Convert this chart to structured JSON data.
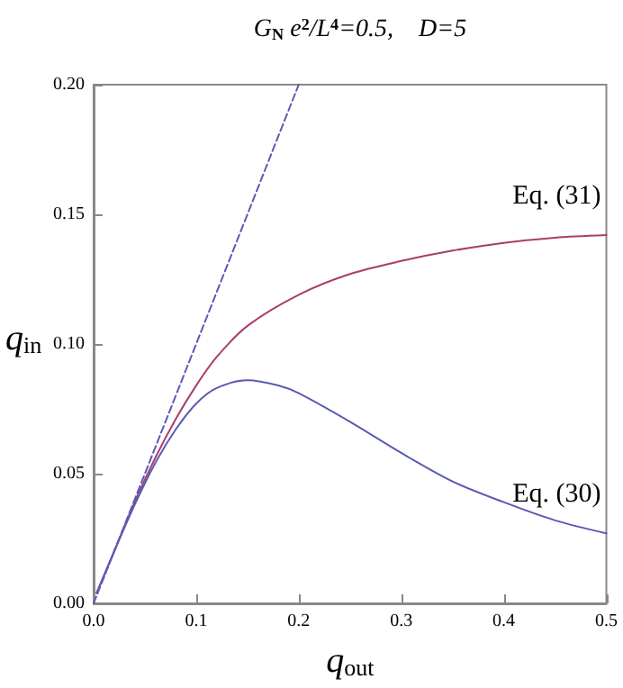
{
  "chart_data": {
    "type": "line",
    "title": "G$_{N}$ e$^{2}$/L$^{4}$=0.5,    D=5",
    "xlabel": "q$_{out}$",
    "ylabel": "q$_{in}$",
    "xlim": [
      0,
      0.5
    ],
    "ylim": [
      0,
      0.2
    ],
    "xticks": [
      {
        "value": 0,
        "label": "0.0"
      },
      {
        "value": 0.1,
        "label": "0.1"
      },
      {
        "value": 0.2,
        "label": "0.2"
      },
      {
        "value": 0.3,
        "label": "0.3"
      },
      {
        "value": 0.4,
        "label": "0.4"
      },
      {
        "value": 0.5,
        "label": "0.5"
      }
    ],
    "yticks": [
      {
        "value": 0,
        "label": "0.00"
      },
      {
        "value": 0.05,
        "label": "0.05"
      },
      {
        "value": 0.1,
        "label": "0.10"
      },
      {
        "value": 0.15,
        "label": "0.15"
      },
      {
        "value": 0.2,
        "label": "0.20"
      }
    ],
    "grid": false,
    "marker": "none",
    "series": [
      {
        "name": "Eq. (31)",
        "color": "#aa3c6e",
        "x": [
          0.003,
          0.02,
          0.04,
          0.06,
          0.08,
          0.1,
          0.12,
          0.15,
          0.2,
          0.25,
          0.3,
          0.35,
          0.4,
          0.45,
          0.5
        ],
        "values": [
          0.004,
          0.02,
          0.039,
          0.056,
          0.071,
          0.084,
          0.095,
          0.107,
          0.119,
          0.127,
          0.132,
          0.136,
          0.139,
          0.141,
          0.142
        ]
      },
      {
        "name": "Eq. (30)",
        "color": "#5a5ab4",
        "x": [
          0.003,
          0.02,
          0.04,
          0.06,
          0.08,
          0.1,
          0.12,
          0.15,
          0.18,
          0.2,
          0.25,
          0.3,
          0.35,
          0.4,
          0.45,
          0.5
        ],
        "values": [
          0.004,
          0.02,
          0.038,
          0.054,
          0.067,
          0.077,
          0.083,
          0.086,
          0.084,
          0.081,
          0.07,
          0.058,
          0.047,
          0.039,
          0.032,
          0.027
        ]
      },
      {
        "color": "#5a5ab4",
        "line_style": "dashed",
        "x": [
          0,
          0.2
        ],
        "values": [
          0,
          0.2
        ]
      }
    ]
  }
}
